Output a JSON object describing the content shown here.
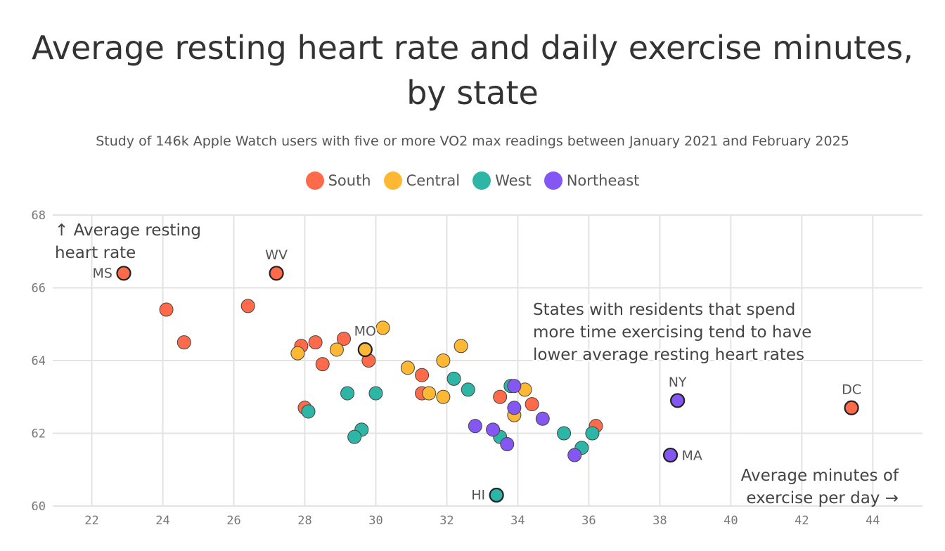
{
  "title_line1": "Average resting heart rate and daily exercise minutes,",
  "title_line2": "by state",
  "subtitle": "Study of 146k Apple Watch users with five or more VO2 max readings between January 2021 and February 2025",
  "chart_data": {
    "type": "scatter",
    "xlabel_line1": "Average minutes of",
    "xlabel_line2": "exercise per day →",
    "ylabel_line1": "↑ Average resting",
    "ylabel_line2": "heart rate",
    "xlim": [
      20.9,
      45.4
    ],
    "ylim": [
      60,
      68
    ],
    "xticks": [
      22,
      24,
      26,
      28,
      30,
      32,
      34,
      36,
      38,
      40,
      42,
      44
    ],
    "yticks": [
      60,
      62,
      64,
      66,
      68
    ],
    "grid": true,
    "legend_position": "top-center",
    "annotation_lines": [
      "States with residents that spend",
      "more time exercising tend to have",
      "lower average resting heart rates"
    ],
    "series": [
      {
        "name": "South",
        "color": "#ff6b4a",
        "points": [
          {
            "x": 22.9,
            "y": 66.4,
            "label": "MS"
          },
          {
            "x": 24.1,
            "y": 65.4
          },
          {
            "x": 24.6,
            "y": 64.5
          },
          {
            "x": 27.2,
            "y": 66.4,
            "label": "WV"
          },
          {
            "x": 26.4,
            "y": 65.5
          },
          {
            "x": 27.9,
            "y": 64.4
          },
          {
            "x": 28.3,
            "y": 64.5
          },
          {
            "x": 28.5,
            "y": 63.9
          },
          {
            "x": 29.1,
            "y": 64.6
          },
          {
            "x": 29.8,
            "y": 64.0
          },
          {
            "x": 28.0,
            "y": 62.7
          },
          {
            "x": 31.3,
            "y": 63.6
          },
          {
            "x": 31.3,
            "y": 63.1
          },
          {
            "x": 33.5,
            "y": 63.0
          },
          {
            "x": 34.4,
            "y": 62.8
          },
          {
            "x": 36.2,
            "y": 62.2
          },
          {
            "x": 43.4,
            "y": 62.7,
            "label": "DC"
          }
        ]
      },
      {
        "name": "Central",
        "color": "#ffb833",
        "points": [
          {
            "x": 27.8,
            "y": 64.2
          },
          {
            "x": 28.9,
            "y": 64.3
          },
          {
            "x": 30.2,
            "y": 64.9
          },
          {
            "x": 29.7,
            "y": 64.3,
            "label": "MO"
          },
          {
            "x": 30.9,
            "y": 63.8
          },
          {
            "x": 31.5,
            "y": 63.1
          },
          {
            "x": 31.9,
            "y": 63.0
          },
          {
            "x": 31.9,
            "y": 64.0
          },
          {
            "x": 32.4,
            "y": 64.4
          },
          {
            "x": 34.2,
            "y": 63.2
          },
          {
            "x": 33.9,
            "y": 62.5
          }
        ]
      },
      {
        "name": "West",
        "color": "#2db5a5",
        "points": [
          {
            "x": 28.1,
            "y": 62.6
          },
          {
            "x": 29.2,
            "y": 63.1
          },
          {
            "x": 30.0,
            "y": 63.1
          },
          {
            "x": 29.6,
            "y": 62.1
          },
          {
            "x": 29.4,
            "y": 61.9
          },
          {
            "x": 32.2,
            "y": 63.5
          },
          {
            "x": 32.6,
            "y": 63.2
          },
          {
            "x": 33.8,
            "y": 63.3
          },
          {
            "x": 33.4,
            "y": 60.3,
            "label": "HI"
          },
          {
            "x": 33.5,
            "y": 61.9
          },
          {
            "x": 35.3,
            "y": 62.0
          },
          {
            "x": 35.8,
            "y": 61.6
          },
          {
            "x": 36.1,
            "y": 62.0
          }
        ]
      },
      {
        "name": "Northeast",
        "color": "#8457f5",
        "points": [
          {
            "x": 33.9,
            "y": 63.3
          },
          {
            "x": 33.9,
            "y": 62.7
          },
          {
            "x": 32.8,
            "y": 62.2
          },
          {
            "x": 33.3,
            "y": 62.1
          },
          {
            "x": 33.7,
            "y": 61.7
          },
          {
            "x": 34.7,
            "y": 62.4
          },
          {
            "x": 35.6,
            "y": 61.4
          },
          {
            "x": 38.5,
            "y": 62.9,
            "label": "NY"
          },
          {
            "x": 38.3,
            "y": 61.4,
            "label": "MA"
          }
        ]
      }
    ]
  }
}
